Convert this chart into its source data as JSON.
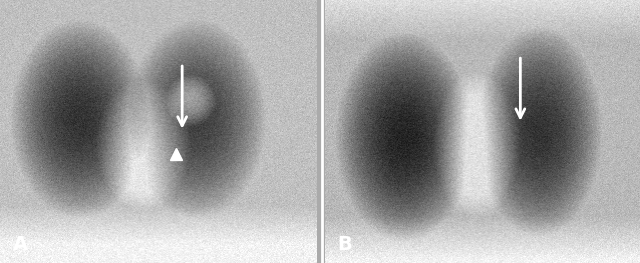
{
  "figsize": [
    6.4,
    2.63
  ],
  "dpi": 100,
  "label_A": "A",
  "label_B": "B",
  "label_color": "white",
  "label_fontsize": 14,
  "label_fontweight": "bold",
  "bg_color": "#aaaaaa",
  "border_color": "white",
  "border_lw": 2.0,
  "arrow_color": "white",
  "arrowhead_color": "white"
}
